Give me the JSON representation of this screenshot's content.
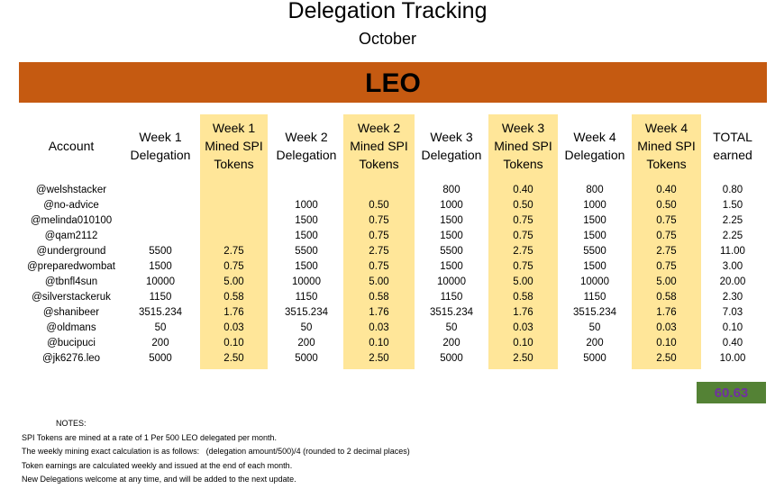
{
  "title": "Delegation Tracking",
  "month": "October",
  "token_banner": "LEO",
  "headers": {
    "account": "Account",
    "week1_delegation": [
      "Week 1",
      "Delegation"
    ],
    "week1_mined": [
      "Week 1",
      "Mined SPI",
      "Tokens"
    ],
    "week2_delegation": [
      "Week 2",
      "Delegation"
    ],
    "week2_mined": [
      "Week 2",
      "Mined SPI",
      "Tokens"
    ],
    "week3_delegation": [
      "Week 3",
      "Delegation"
    ],
    "week3_mined": [
      "Week 3",
      "Mined SPI",
      "Tokens"
    ],
    "week4_delegation": [
      "Week 4",
      "Delegation"
    ],
    "week4_mined": [
      "Week 4",
      "Mined SPI",
      "Tokens"
    ],
    "total": [
      "TOTAL",
      "earned"
    ]
  },
  "rows": [
    {
      "account": "@welshstacker",
      "w1d": "",
      "w1m": "",
      "w2d": "",
      "w2m": "",
      "w3d": "800",
      "w3m": "0.40",
      "w4d": "800",
      "w4m": "0.40",
      "total": "0.80"
    },
    {
      "account": "@no-advice",
      "w1d": "",
      "w1m": "",
      "w2d": "1000",
      "w2m": "0.50",
      "w3d": "1000",
      "w3m": "0.50",
      "w4d": "1000",
      "w4m": "0.50",
      "total": "1.50"
    },
    {
      "account": "@melinda010100",
      "w1d": "",
      "w1m": "",
      "w2d": "1500",
      "w2m": "0.75",
      "w3d": "1500",
      "w3m": "0.75",
      "w4d": "1500",
      "w4m": "0.75",
      "total": "2.25"
    },
    {
      "account": "@qam2112",
      "w1d": "",
      "w1m": "",
      "w2d": "1500",
      "w2m": "0.75",
      "w3d": "1500",
      "w3m": "0.75",
      "w4d": "1500",
      "w4m": "0.75",
      "total": "2.25"
    },
    {
      "account": "@underground",
      "w1d": "5500",
      "w1m": "2.75",
      "w2d": "5500",
      "w2m": "2.75",
      "w3d": "5500",
      "w3m": "2.75",
      "w4d": "5500",
      "w4m": "2.75",
      "total": "11.00"
    },
    {
      "account": "@preparedwombat",
      "w1d": "1500",
      "w1m": "0.75",
      "w2d": "1500",
      "w2m": "0.75",
      "w3d": "1500",
      "w3m": "0.75",
      "w4d": "1500",
      "w4m": "0.75",
      "total": "3.00"
    },
    {
      "account": "@tbnfl4sun",
      "w1d": "10000",
      "w1m": "5.00",
      "w2d": "10000",
      "w2m": "5.00",
      "w3d": "10000",
      "w3m": "5.00",
      "w4d": "10000",
      "w4m": "5.00",
      "total": "20.00"
    },
    {
      "account": "@silverstackeruk",
      "w1d": "1150",
      "w1m": "0.58",
      "w2d": "1150",
      "w2m": "0.58",
      "w3d": "1150",
      "w3m": "0.58",
      "w4d": "1150",
      "w4m": "0.58",
      "total": "2.30"
    },
    {
      "account": "@shanibeer",
      "w1d": "3515.234",
      "w1m": "1.76",
      "w2d": "3515.234",
      "w2m": "1.76",
      "w3d": "3515.234",
      "w3m": "1.76",
      "w4d": "3515.234",
      "w4m": "1.76",
      "total": "7.03"
    },
    {
      "account": "@oldmans",
      "w1d": "50",
      "w1m": "0.03",
      "w2d": "50",
      "w2m": "0.03",
      "w3d": "50",
      "w3m": "0.03",
      "w4d": "50",
      "w4m": "0.03",
      "total": "0.10"
    },
    {
      "account": "@bucipuci",
      "w1d": "200",
      "w1m": "0.10",
      "w2d": "200",
      "w2m": "0.10",
      "w3d": "200",
      "w3m": "0.10",
      "w4d": "200",
      "w4m": "0.10",
      "total": "0.40"
    },
    {
      "account": "@jk6276.leo",
      "w1d": "5000",
      "w1m": "2.50",
      "w2d": "5000",
      "w2m": "2.50",
      "w3d": "5000",
      "w3m": "2.50",
      "w4d": "5000",
      "w4m": "2.50",
      "total": "10.00"
    }
  ],
  "grand_total": "60.63",
  "notes": {
    "heading": "NOTES:",
    "lines": [
      "SPI Tokens are mined at a rate of 1 Per 500 LEO delegated per month.",
      "The weekly mining exact calculation is as follows:   (delegation amount/500)/4 (rounded to 2 decimal places)",
      "Token earnings are calculated weekly and issued at the end of each month.",
      "New Delegations welcome at any time, and will be added to the next update."
    ]
  },
  "colors": {
    "banner": "#c55a11",
    "mined_column": "#ffe699",
    "total_box": "#548235",
    "total_text": "#7030a0"
  }
}
